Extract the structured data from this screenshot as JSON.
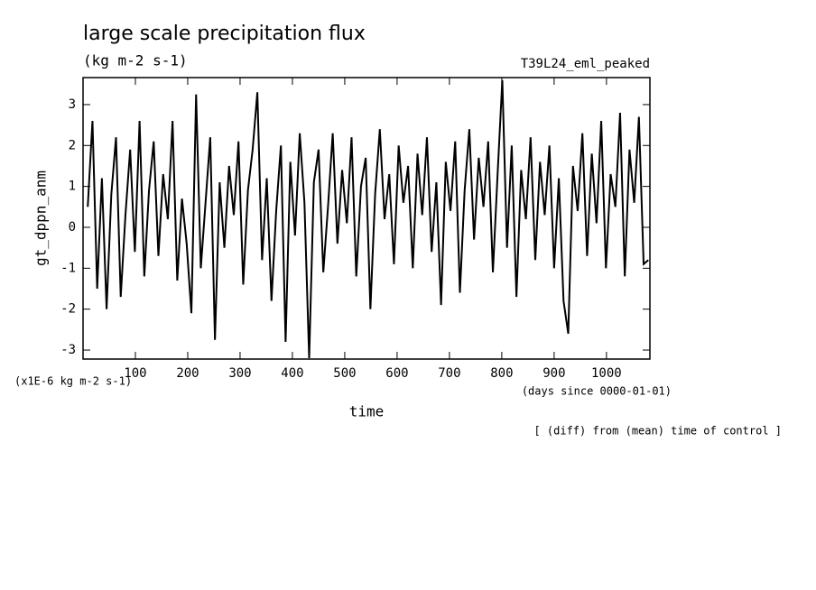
{
  "chart_data": {
    "type": "line",
    "title": "large scale precipitation flux",
    "subtitle": "(kg m-2 s-1)",
    "run_label": "T39L24_eml_peaked",
    "y_label": "gt_dppn_anm",
    "x_label": "time",
    "y_unit": "(x1E-6 kg m-2 s-1)",
    "x_unit": "(days since 0000-01-01)",
    "note": "[ (diff) from (mean) time of control ]",
    "xlim": [
      0,
      1083
    ],
    "ylim": [
      -3.22,
      3.66
    ],
    "xticks": [
      100,
      200,
      300,
      400,
      500,
      600,
      700,
      800,
      900,
      1000
    ],
    "yticks": [
      -3,
      -2,
      -1,
      0,
      1,
      2,
      3
    ],
    "x": [
      9,
      18,
      27,
      36,
      45,
      54,
      63,
      72,
      81,
      90,
      99,
      108,
      117,
      126,
      135,
      144,
      153,
      162,
      171,
      180,
      189,
      198,
      207,
      216,
      225,
      234,
      243,
      252,
      261,
      270,
      279,
      288,
      297,
      306,
      315,
      324,
      333,
      342,
      351,
      360,
      369,
      378,
      387,
      396,
      405,
      414,
      423,
      432,
      441,
      450,
      459,
      468,
      477,
      486,
      495,
      504,
      513,
      522,
      531,
      540,
      549,
      558,
      567,
      576,
      585,
      594,
      603,
      612,
      621,
      630,
      639,
      648,
      657,
      666,
      675,
      684,
      693,
      702,
      711,
      720,
      729,
      738,
      747,
      756,
      765,
      774,
      783,
      792,
      801,
      810,
      819,
      828,
      837,
      846,
      855,
      864,
      873,
      882,
      891,
      900,
      909,
      918,
      927,
      936,
      945,
      954,
      963,
      972,
      981,
      990,
      999,
      1008,
      1017,
      1026,
      1035,
      1044,
      1053,
      1062,
      1071,
      1080
    ],
    "series": [
      {
        "name": "gt_dppn_anm",
        "color": "#000000",
        "values": [
          0.5,
          2.6,
          -1.5,
          1.2,
          -2.0,
          0.8,
          2.2,
          -1.7,
          0.3,
          1.9,
          -0.6,
          2.6,
          -1.2,
          0.9,
          2.1,
          -0.7,
          1.3,
          0.2,
          2.6,
          -1.3,
          0.7,
          -0.4,
          -2.1,
          3.25,
          -1.0,
          0.6,
          2.2,
          -2.75,
          1.1,
          -0.5,
          1.5,
          0.3,
          2.1,
          -1.4,
          0.9,
          1.9,
          3.3,
          -0.8,
          1.2,
          -1.8,
          0.4,
          2.0,
          -2.8,
          1.6,
          -0.2,
          2.3,
          0.6,
          -3.2,
          1.1,
          1.9,
          -1.1,
          0.5,
          2.3,
          -0.4,
          1.4,
          0.1,
          2.2,
          -1.2,
          1.0,
          1.7,
          -2.0,
          0.8,
          2.4,
          0.2,
          1.3,
          -0.9,
          2.0,
          0.6,
          1.5,
          -1.0,
          1.8,
          0.3,
          2.2,
          -0.6,
          1.1,
          -1.9,
          1.6,
          0.4,
          2.1,
          -1.6,
          0.9,
          2.4,
          -0.3,
          1.7,
          0.5,
          2.1,
          -1.1,
          1.3,
          3.6,
          -0.5,
          2.0,
          -1.7,
          1.4,
          0.2,
          2.2,
          -0.8,
          1.6,
          0.3,
          2.0,
          -1.0,
          1.2,
          -1.8,
          -2.6,
          1.5,
          0.4,
          2.3,
          -0.7,
          1.8,
          0.1,
          2.6,
          -1.0,
          1.3,
          0.5,
          2.8,
          -1.2,
          1.9,
          0.6,
          2.7,
          -0.9,
          -0.8
        ]
      }
    ]
  }
}
